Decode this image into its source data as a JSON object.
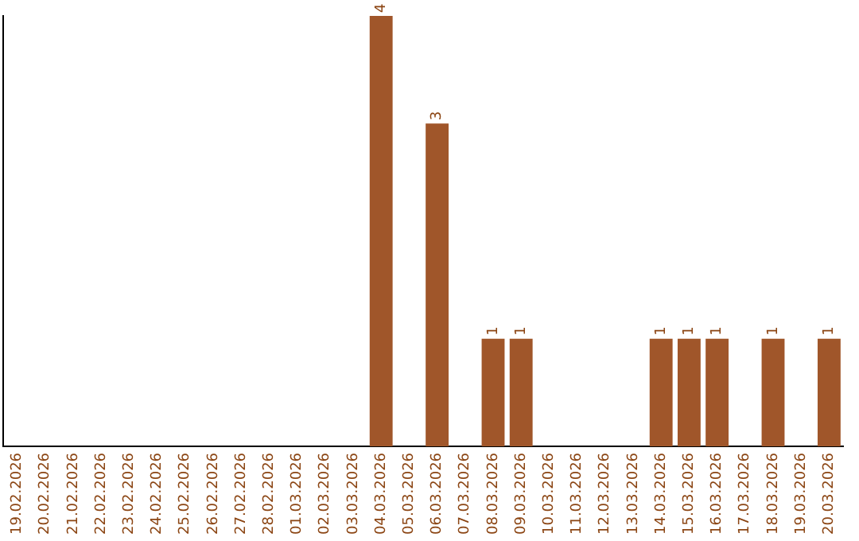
{
  "chart_data": {
    "type": "bar",
    "categories": [
      "19.02.2026",
      "20.02.2026",
      "21.02.2026",
      "22.02.2026",
      "23.02.2026",
      "24.02.2026",
      "25.02.2026",
      "26.02.2026",
      "27.02.2026",
      "28.02.2026",
      "01.03.2026",
      "02.03.2026",
      "03.03.2026",
      "04.03.2026",
      "05.03.2026",
      "06.03.2026",
      "07.03.2026",
      "08.03.2026",
      "09.03.2026",
      "10.03.2026",
      "11.03.2026",
      "12.03.2026",
      "13.03.2026",
      "14.03.2026",
      "15.03.2026",
      "16.03.2026",
      "17.03.2026",
      "18.03.2026",
      "19.03.2026",
      "20.03.2026"
    ],
    "values": [
      null,
      null,
      null,
      null,
      null,
      null,
      null,
      null,
      null,
      null,
      null,
      null,
      null,
      4,
      null,
      3,
      null,
      1,
      1,
      null,
      null,
      null,
      null,
      1,
      1,
      1,
      null,
      1,
      null,
      1
    ],
    "color": "#a0562a",
    "data_labels": true,
    "grid": false,
    "legend": false
  }
}
